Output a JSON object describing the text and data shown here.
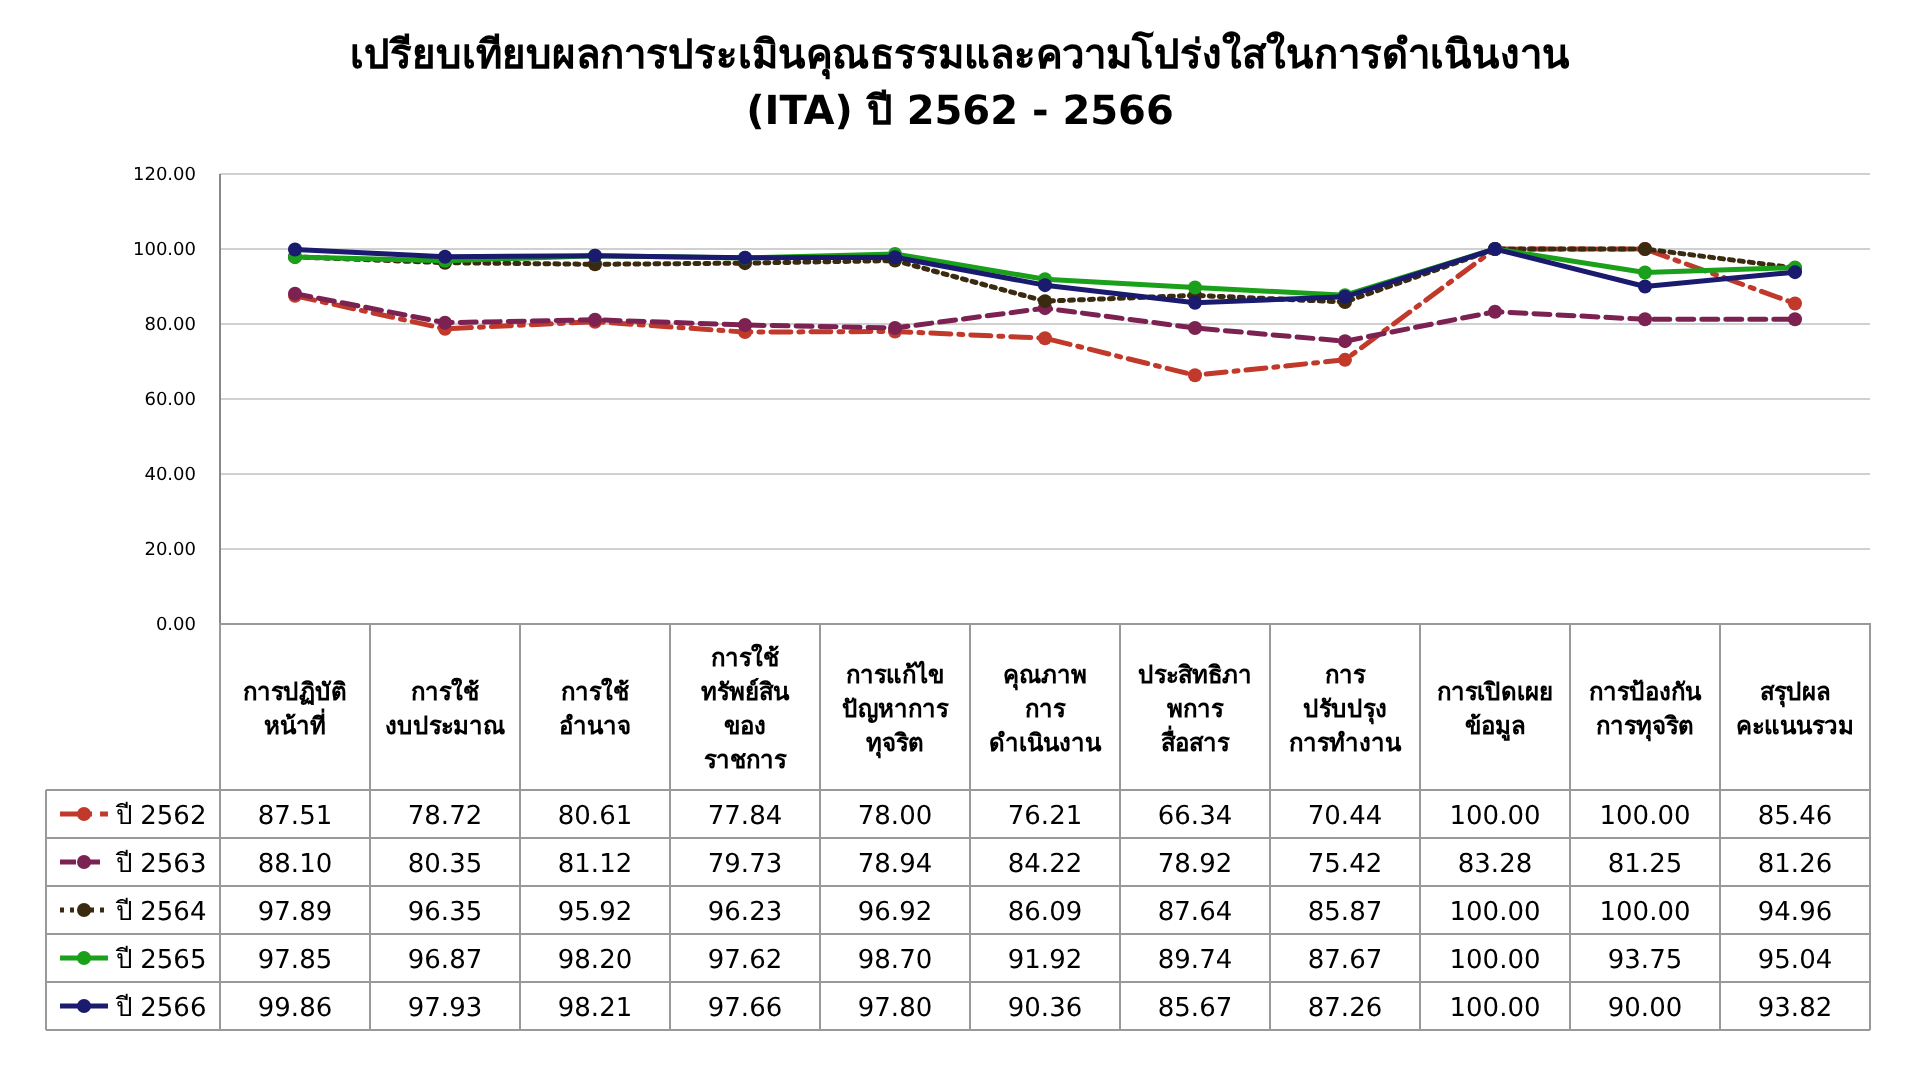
{
  "chart_data": {
    "type": "line",
    "title": "เปรียบเทียบผลการประเมินคุณธรรมและความโปร่งใสในการดำเนินงาน\n(ITA) ปี 2562 - 2566",
    "categories": [
      "การปฏิบัติ\nหน้าที่",
      "การใช้\nงบประมาณ",
      "การใช้\nอำนาจ",
      "การใช้\nทรัพย์สิน\nของ\nราชการ",
      "การแก้ไข\nปัญหาการ\nทุจริต",
      "คุณภาพ\nการ\nดำเนินงาน",
      "ประสิทธิภา\nพการ\nสื่อสาร",
      "การ\nปรับปรุง\nการทำงาน",
      "การเปิดเผย\nข้อมูล",
      "การป้องกัน\nการทุจริต",
      "สรุปผล\nคะแนนรวม"
    ],
    "series": [
      {
        "name": "ปี 2562",
        "color": "#c0392b",
        "line_style": "dashdot",
        "values": [
          87.51,
          78.72,
          80.61,
          77.84,
          78.0,
          76.21,
          66.34,
          70.44,
          100.0,
          100.0,
          85.46
        ],
        "value_labels": [
          "87.51",
          "78.72",
          "80.61",
          "77.84",
          "78.00",
          "76.21",
          "66.34",
          "70.44",
          "100.00",
          "100.00",
          "85.46"
        ]
      },
      {
        "name": "ปี 2563",
        "color": "#7b2252",
        "line_style": "dashed",
        "values": [
          88.1,
          80.35,
          81.12,
          79.73,
          78.94,
          84.22,
          78.92,
          75.42,
          83.28,
          81.25,
          81.26
        ],
        "value_labels": [
          "88.10",
          "80.35",
          "81.12",
          "79.73",
          "78.94",
          "84.22",
          "78.92",
          "75.42",
          "83.28",
          "81.25",
          "81.26"
        ]
      },
      {
        "name": "ปี 2564",
        "color": "#3a2a10",
        "line_style": "dotted",
        "values": [
          97.89,
          96.35,
          95.92,
          96.23,
          96.92,
          86.09,
          87.64,
          85.87,
          100.0,
          100.0,
          94.96
        ],
        "value_labels": [
          "97.89",
          "96.35",
          "95.92",
          "96.23",
          "96.92",
          "86.09",
          "87.64",
          "85.87",
          "100.00",
          "100.00",
          "94.96"
        ]
      },
      {
        "name": "ปี 2565",
        "color": "#1aa01a",
        "line_style": "solid",
        "values": [
          97.85,
          96.87,
          98.2,
          97.62,
          98.7,
          91.92,
          89.74,
          87.67,
          100.0,
          93.75,
          95.04
        ],
        "value_labels": [
          "97.85",
          "96.87",
          "98.20",
          "97.62",
          "98.70",
          "91.92",
          "89.74",
          "87.67",
          "100.00",
          "93.75",
          "95.04"
        ]
      },
      {
        "name": "ปี 2566",
        "color": "#1a1a6e",
        "line_style": "solid",
        "values": [
          99.86,
          97.93,
          98.21,
          97.66,
          97.8,
          90.36,
          85.67,
          87.26,
          100.0,
          90.0,
          93.82
        ],
        "value_labels": [
          "99.86",
          "97.93",
          "98.21",
          "97.66",
          "97.80",
          "90.36",
          "85.67",
          "87.26",
          "100.00",
          "90.00",
          "93.82"
        ]
      }
    ],
    "ylim": [
      0,
      120
    ],
    "yticks": [
      {
        "value": 0,
        "label": "0.00"
      },
      {
        "value": 20,
        "label": "20.00"
      },
      {
        "value": 40,
        "label": "40.00"
      },
      {
        "value": 60,
        "label": "60.00"
      },
      {
        "value": 80,
        "label": "80.00"
      },
      {
        "value": 100,
        "label": "100.00"
      },
      {
        "value": 120,
        "label": "120.00"
      }
    ],
    "grid": "y",
    "marker": "circle",
    "legend": "bottom"
  }
}
